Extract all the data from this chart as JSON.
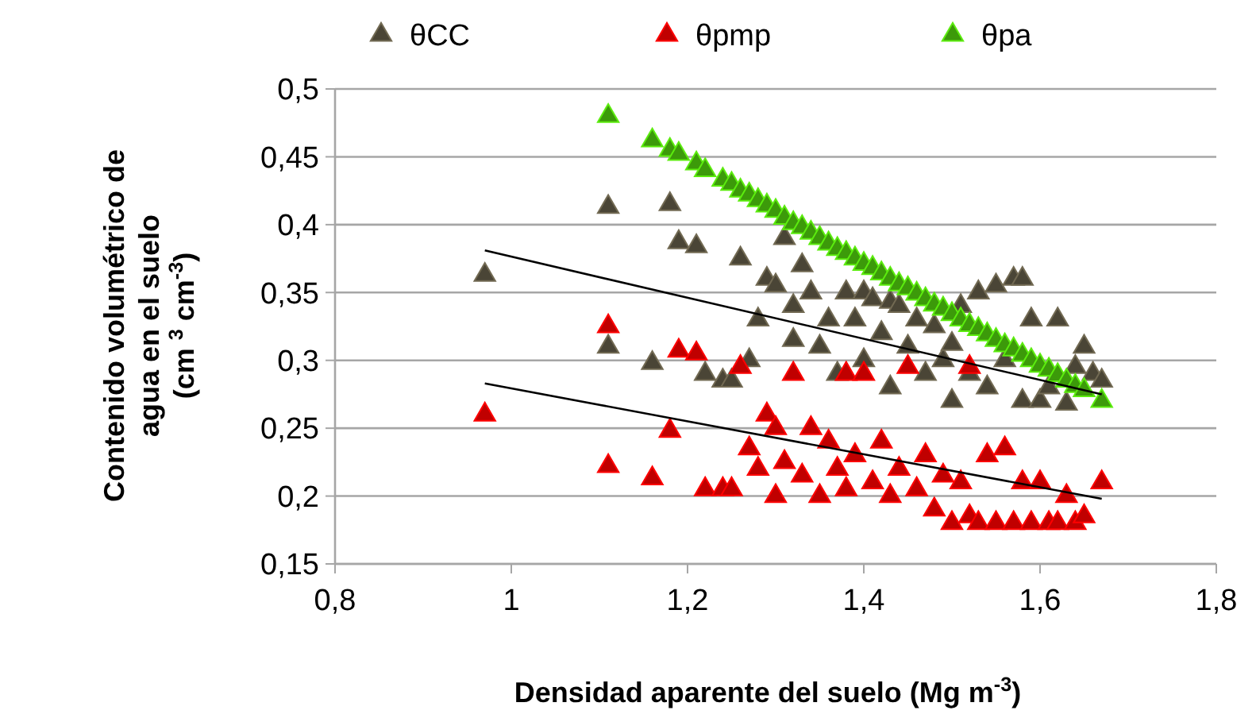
{
  "chart_data": {
    "type": "scatter",
    "xlabel": "Densidad aparente del suelo (Mg m$^{-3}$)",
    "ylabel": "Contenido volumétrico de\nagua en el  suelo\n(cm $^{3}$ cm$^{-3}$)",
    "xlim": [
      0.8,
      1.8
    ],
    "xticks": [
      {
        "value": 0.8,
        "label": "0,8"
      },
      1,
      {
        "value": 1.2,
        "label": "1,2"
      },
      {
        "value": 1.4,
        "label": "1,4"
      },
      {
        "value": 1.6,
        "label": "1,6"
      },
      {
        "value": 1.8,
        "label": "1,8"
      }
    ],
    "ylim": [
      0.15,
      0.5
    ],
    "yticks": [
      {
        "value": 0.15,
        "label": "0,15"
      },
      {
        "value": 0.2,
        "label": "0,2"
      },
      {
        "value": 0.25,
        "label": "0,25"
      },
      {
        "value": 0.3,
        "label": "0,3"
      },
      {
        "value": 0.35,
        "label": "0,35"
      },
      {
        "value": 0.4,
        "label": "0,4"
      },
      {
        "value": 0.45,
        "label": "0,45"
      },
      {
        "value": 0.5,
        "label": "0,5"
      }
    ],
    "grid": "y",
    "legend": "top",
    "marker": "triangle",
    "series": [
      {
        "name": "θCC",
        "color": "#4a4536",
        "x": [
          0.97,
          1.11,
          1.11,
          1.16,
          1.18,
          1.19,
          1.21,
          1.22,
          1.24,
          1.25,
          1.26,
          1.27,
          1.28,
          1.29,
          1.3,
          1.31,
          1.32,
          1.32,
          1.33,
          1.34,
          1.35,
          1.36,
          1.37,
          1.38,
          1.39,
          1.4,
          1.4,
          1.41,
          1.42,
          1.43,
          1.43,
          1.44,
          1.45,
          1.46,
          1.47,
          1.48,
          1.49,
          1.5,
          1.5,
          1.51,
          1.52,
          1.53,
          1.54,
          1.55,
          1.56,
          1.57,
          1.58,
          1.58,
          1.59,
          1.6,
          1.61,
          1.62,
          1.63,
          1.64,
          1.65,
          1.66,
          1.67
        ],
        "values": [
          0.363,
          0.413,
          0.31,
          0.298,
          0.415,
          0.387,
          0.384,
          0.29,
          0.285,
          0.285,
          0.375,
          0.3,
          0.33,
          0.36,
          0.355,
          0.39,
          0.34,
          0.315,
          0.37,
          0.35,
          0.31,
          0.33,
          0.29,
          0.35,
          0.33,
          0.35,
          0.3,
          0.345,
          0.32,
          0.343,
          0.28,
          0.34,
          0.31,
          0.33,
          0.29,
          0.325,
          0.3,
          0.312,
          0.27,
          0.34,
          0.29,
          0.35,
          0.28,
          0.355,
          0.3,
          0.36,
          0.36,
          0.27,
          0.33,
          0.27,
          0.28,
          0.33,
          0.268,
          0.295,
          0.31,
          0.29,
          0.285
        ]
      },
      {
        "name": "θpmp",
        "color": "#c00000",
        "x": [
          0.97,
          1.11,
          1.11,
          1.16,
          1.18,
          1.19,
          1.21,
          1.22,
          1.24,
          1.25,
          1.26,
          1.27,
          1.28,
          1.29,
          1.3,
          1.3,
          1.31,
          1.32,
          1.33,
          1.34,
          1.35,
          1.36,
          1.37,
          1.38,
          1.38,
          1.39,
          1.4,
          1.41,
          1.42,
          1.43,
          1.44,
          1.45,
          1.46,
          1.47,
          1.48,
          1.49,
          1.5,
          1.51,
          1.52,
          1.52,
          1.53,
          1.54,
          1.55,
          1.56,
          1.57,
          1.58,
          1.59,
          1.6,
          1.61,
          1.62,
          1.63,
          1.64,
          1.65,
          1.67
        ],
        "values": [
          0.26,
          0.325,
          0.222,
          0.213,
          0.248,
          0.307,
          0.305,
          0.205,
          0.205,
          0.205,
          0.295,
          0.235,
          0.22,
          0.26,
          0.2,
          0.25,
          0.225,
          0.29,
          0.215,
          0.25,
          0.2,
          0.24,
          0.22,
          0.29,
          0.205,
          0.23,
          0.29,
          0.21,
          0.24,
          0.2,
          0.22,
          0.295,
          0.205,
          0.23,
          0.19,
          0.215,
          0.18,
          0.21,
          0.295,
          0.185,
          0.18,
          0.23,
          0.18,
          0.235,
          0.18,
          0.21,
          0.18,
          0.21,
          0.18,
          0.18,
          0.2,
          0.18,
          0.185,
          0.21
        ]
      },
      {
        "name": "θpa",
        "color": "#3c9a0a",
        "x": [
          1.11,
          1.16,
          1.18,
          1.19,
          1.21,
          1.22,
          1.24,
          1.25,
          1.26,
          1.27,
          1.28,
          1.29,
          1.3,
          1.31,
          1.32,
          1.33,
          1.34,
          1.35,
          1.36,
          1.37,
          1.38,
          1.39,
          1.4,
          1.41,
          1.42,
          1.43,
          1.44,
          1.45,
          1.46,
          1.47,
          1.48,
          1.49,
          1.5,
          1.51,
          1.52,
          1.53,
          1.54,
          1.55,
          1.56,
          1.57,
          1.58,
          1.59,
          1.6,
          1.61,
          1.62,
          1.63,
          1.64,
          1.65,
          1.67
        ],
        "values": [
          0.48,
          0.462,
          0.455,
          0.452,
          0.445,
          0.44,
          0.433,
          0.43,
          0.425,
          0.422,
          0.418,
          0.414,
          0.41,
          0.405,
          0.401,
          0.398,
          0.394,
          0.39,
          0.386,
          0.382,
          0.379,
          0.375,
          0.371,
          0.368,
          0.364,
          0.36,
          0.356,
          0.353,
          0.349,
          0.345,
          0.341,
          0.338,
          0.334,
          0.33,
          0.326,
          0.323,
          0.319,
          0.315,
          0.311,
          0.308,
          0.304,
          0.3,
          0.296,
          0.293,
          0.289,
          0.285,
          0.281,
          0.278,
          0.27
        ]
      },
      {
        "type": "line",
        "color": "#000000",
        "marker": "none",
        "x": [
          0.97,
          1.67
        ],
        "values": [
          0.381,
          0.275
        ]
      },
      {
        "type": "line",
        "color": "#000000",
        "marker": "none",
        "x": [
          0.97,
          1.67
        ],
        "values": [
          0.283,
          0.198
        ]
      }
    ]
  }
}
